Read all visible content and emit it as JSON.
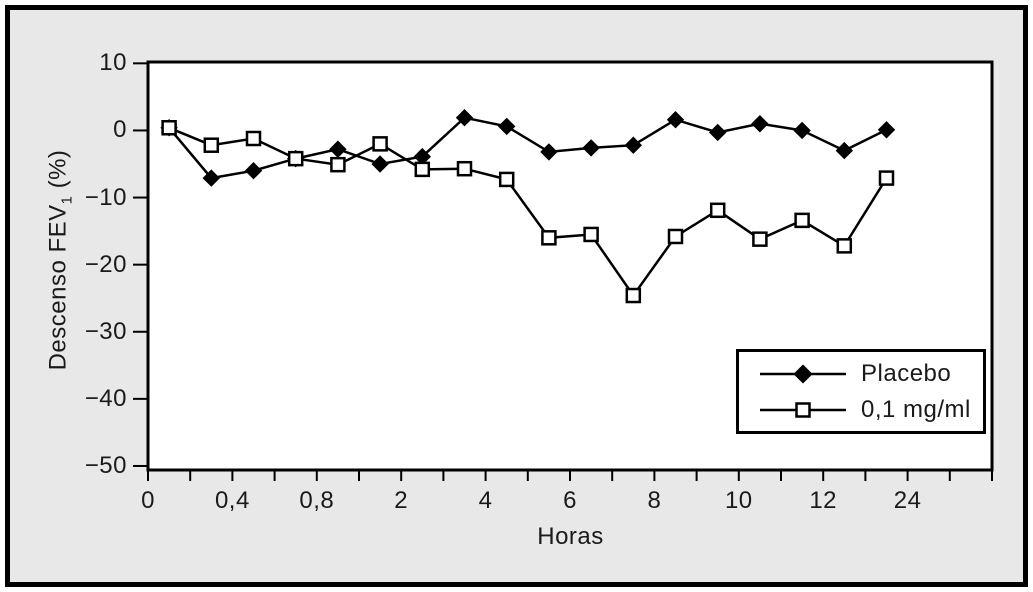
{
  "figure": {
    "outer_background": "#ffffff",
    "frame_color": "#000000",
    "panel_background": "#e8e8e8",
    "plot_background": "#ffffff",
    "line_color": "#000000",
    "text_color": "#1a1a1a"
  },
  "chart_data": {
    "type": "line",
    "title": "",
    "xlabel": "Horas",
    "ylabel": {
      "prefix": "Descenso FEV",
      "subscript": "1",
      "suffix": " (%)"
    },
    "grid": false,
    "legend_position": "lower-right-inside",
    "ylim": [
      -50.6,
      10.2
    ],
    "y_ticks": [
      {
        "value": 10,
        "label": "10"
      },
      {
        "value": 0,
        "label": "0"
      },
      {
        "value": -10,
        "label": "−10"
      },
      {
        "value": -20,
        "label": "−20"
      },
      {
        "value": -30,
        "label": "−30"
      },
      {
        "value": -40,
        "label": "−40"
      },
      {
        "value": -50,
        "label": "−50"
      }
    ],
    "x_axis": {
      "total_ticks": 21,
      "point_positions": "midpoints-between-consecutive-ticks",
      "labeled_ticks": [
        {
          "tick_index": 0,
          "label": "0"
        },
        {
          "tick_index": 2,
          "label": "0,4"
        },
        {
          "tick_index": 4,
          "label": "0,8"
        },
        {
          "tick_index": 6,
          "label": "2"
        },
        {
          "tick_index": 8,
          "label": "4"
        },
        {
          "tick_index": 10,
          "label": "6"
        },
        {
          "tick_index": 12,
          "label": "8"
        },
        {
          "tick_index": 14,
          "label": "10"
        },
        {
          "tick_index": 16,
          "label": "12"
        },
        {
          "tick_index": 18,
          "label": "24"
        }
      ]
    },
    "series": [
      {
        "name": "Placebo",
        "marker": "filled-diamond",
        "color": "#000000",
        "values": [
          0.4,
          -7.1,
          -6.0,
          -4.2,
          -2.8,
          -5.0,
          -3.9,
          1.9,
          0.6,
          -3.2,
          -2.6,
          -2.2,
          1.6,
          -0.3,
          1.0,
          0.0,
          -3.0,
          0.1
        ]
      },
      {
        "name": "0,1 mg/ml",
        "marker": "open-square",
        "color": "#000000",
        "values": [
          0.4,
          -2.2,
          -1.2,
          -4.2,
          -5.1,
          -2.0,
          -5.8,
          -5.7,
          -7.3,
          -16.0,
          -15.5,
          -24.6,
          -15.8,
          -11.9,
          -16.2,
          -13.4,
          -17.2,
          -7.1
        ]
      }
    ]
  }
}
